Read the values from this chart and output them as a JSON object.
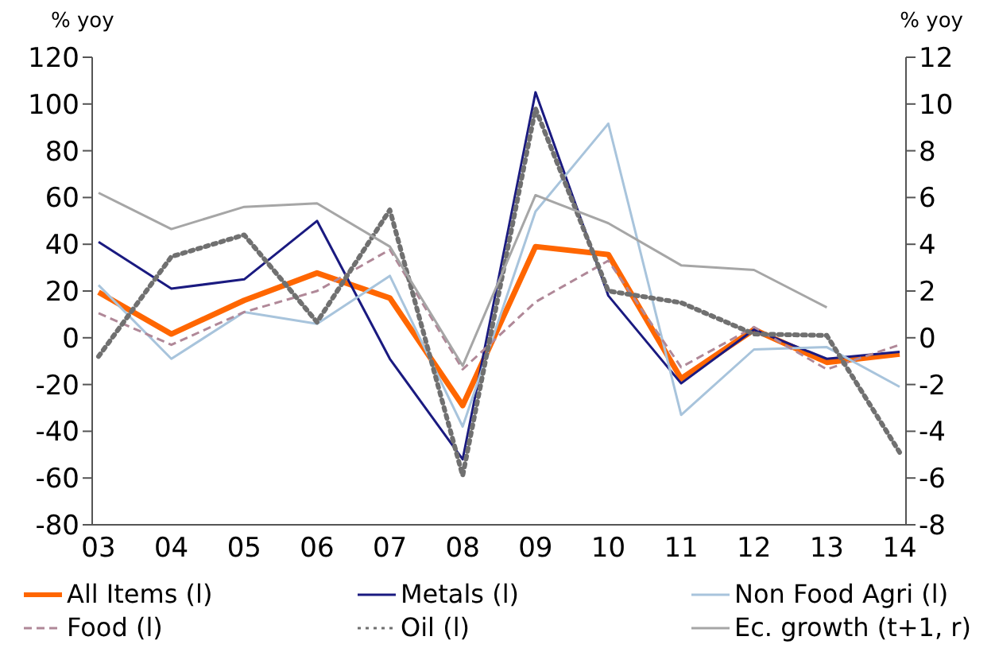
{
  "chart_data": {
    "type": "line",
    "ylabel": "% yoy",
    "y2label": "% yoy",
    "categories": [
      "03",
      "04",
      "05",
      "06",
      "07",
      "08",
      "09",
      "10",
      "11",
      "12",
      "13",
      "14"
    ],
    "ylim": [
      -80,
      120
    ],
    "yticks": [
      -80,
      -60,
      -40,
      -20,
      0,
      20,
      40,
      60,
      80,
      100,
      120
    ],
    "y2lim": [
      -8,
      12
    ],
    "y2ticks": [
      -8,
      -6,
      -4,
      -2,
      0,
      2,
      4,
      6,
      8,
      10,
      12
    ],
    "grid": false,
    "legend": "bottom",
    "marker": "none",
    "series": [
      {
        "name": "All Items (l)",
        "color": "#ff6600",
        "line_style": "solid",
        "values": [
          19.5,
          1.6,
          16,
          27.7,
          17,
          -29,
          39,
          35.6,
          -17.5,
          3.5,
          -10.5,
          -7
        ]
      },
      {
        "name": "Metals (l)",
        "color": "#1a1a80",
        "line_style": "solid",
        "values": [
          41,
          21,
          25,
          50,
          -9,
          -52,
          105,
          18,
          -19.5,
          3.5,
          -9,
          -6
        ]
      },
      {
        "name": "Non Food Agri (l)",
        "color": "#a8c4dc",
        "line_style": "solid",
        "values": [
          22.5,
          -9,
          11,
          6,
          26.5,
          -38,
          54,
          91.6,
          -33,
          -5,
          -4,
          -21
        ]
      },
      {
        "name": "Food (l)",
        "color": "#b08898",
        "line_style": "dashed",
        "values": [
          10.5,
          -3,
          11,
          20,
          37.7,
          -13.5,
          15.3,
          33,
          -12.6,
          4.6,
          -13.5,
          -3
        ]
      },
      {
        "name": "Oil (l)",
        "color": "#707070",
        "line_style": "dotted",
        "values": [
          -8,
          34.7,
          44,
          6.7,
          54.7,
          -59,
          98,
          20,
          15,
          1.6,
          1,
          -49
        ]
      },
      {
        "name": "Ec. growth (t+1, r)",
        "color": "#a6a6a6",
        "line_style": "solid",
        "axis": "y2",
        "values": [
          6.2,
          4.65,
          5.6,
          5.75,
          3.9,
          -1.2,
          6.1,
          4.9,
          3.1,
          2.9,
          1.3,
          null
        ]
      }
    ]
  }
}
